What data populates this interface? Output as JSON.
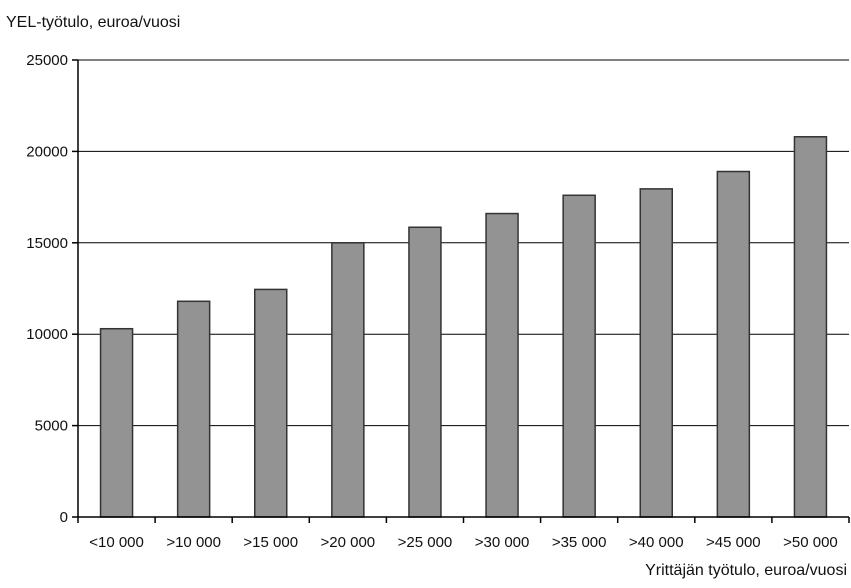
{
  "chart_data": {
    "type": "bar",
    "title": "",
    "ylabel": "YEL-työtulo, euroa/vuosi",
    "xlabel": "Yrittäjän työtulo, euroa/vuosi",
    "categories": [
      "<10 000",
      ">10 000",
      ">15 000",
      ">20 000",
      ">25 000",
      ">30 000",
      ">35 000",
      ">40 000",
      ">45 000",
      ">50 000"
    ],
    "values": [
      10300,
      11800,
      12450,
      15000,
      15850,
      16600,
      17600,
      17950,
      18900,
      20800
    ],
    "ylim": [
      0,
      25000
    ],
    "yticks": [
      0,
      5000,
      10000,
      15000,
      20000,
      25000
    ],
    "grid": true,
    "legend": "none",
    "colors": {
      "bar_fill": "#939393",
      "bar_stroke": "#333333",
      "grid": "#000000",
      "axis": "#000000"
    }
  }
}
